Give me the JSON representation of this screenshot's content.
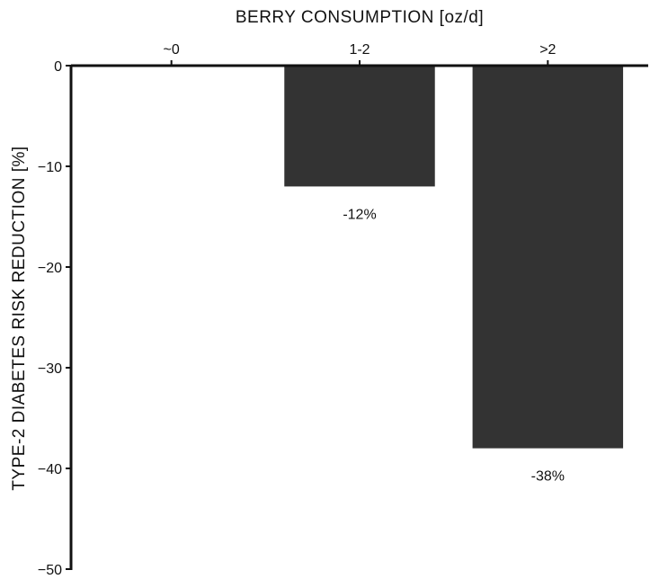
{
  "chart_data": {
    "type": "bar",
    "xlabel": "BERRY CONSUMPTION [oz/d]",
    "ylabel": "TYPE-2 DIABETES RISK REDUCTION [%]",
    "x_axis_position": "top",
    "categories": [
      "~0",
      "1-2",
      ">2"
    ],
    "values": [
      0,
      -12,
      -38
    ],
    "data_labels": [
      "",
      "-12%",
      "-38%"
    ],
    "ylim": [
      -50,
      0
    ],
    "yticks": [
      0,
      -10,
      -20,
      -30,
      -40,
      -50
    ],
    "ytick_labels": [
      "0",
      "−10",
      "−20",
      "−30",
      "−40",
      "−50"
    ],
    "grid": false,
    "legend": "none",
    "bar_color": "#333333"
  }
}
